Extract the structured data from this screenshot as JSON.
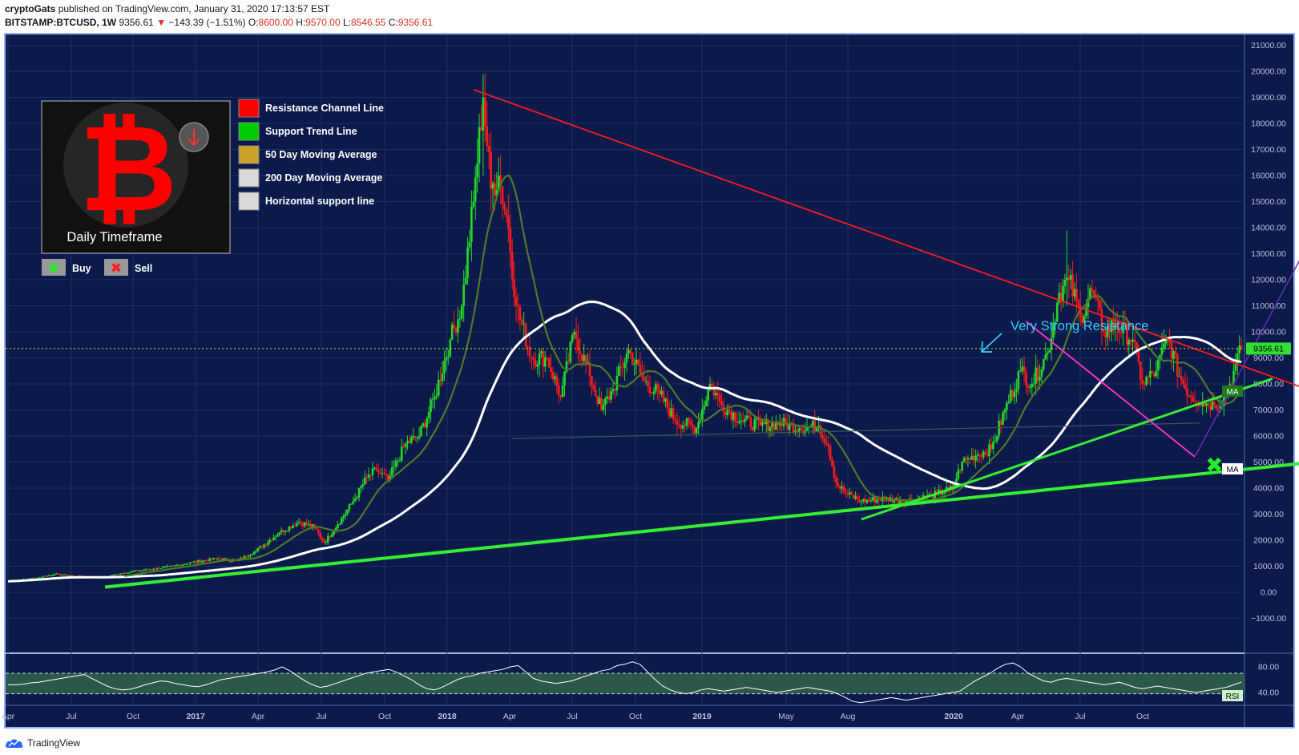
{
  "header": {
    "author": "cryptoGats",
    "published_text": " published on TradingView.com, January 31, 2020 17:13:57 EST",
    "symbol": "BITSTAMP:BTCUSD, 1W",
    "last": "9356.61",
    "change": "−143.39 (−1.51%)",
    "o_label": "O:",
    "o_value": "8600.00",
    "h_label": "H:",
    "h_value": "9570.00",
    "l_label": "L:",
    "l_value": "8546.55",
    "c_label": "C:",
    "c_value": "9356.61"
  },
  "footer": {
    "brand": "TradingView"
  },
  "overlay": {
    "logo_caption": "Daily Timeframe",
    "legend": [
      {
        "label": "Resistance Channel Line",
        "color": "#ff0000"
      },
      {
        "label": "Support Trend Line",
        "color": "#00cc00"
      },
      {
        "label": "50 Day Moving Average",
        "color": "#c9a227"
      },
      {
        "label": "200 Day Moving Average",
        "color": "#d9d9d9"
      },
      {
        "label": "Horizontal support line",
        "color": "#d9d9d9"
      }
    ],
    "buy_label": "Buy",
    "sell_label": "Sell",
    "annotation": "Very Strong Resistance"
  },
  "colors": {
    "background": "#0b1a4a",
    "up": "#26d926",
    "down": "#ff1a1a",
    "resistance": "#ff1a1a",
    "support": "#33ee33",
    "ma50": "#4c7a2a",
    "ma200": "#ffffff",
    "wedge": "#ff33cc",
    "projection": "#6a2fb0",
    "annotation": "#33ccff",
    "rsi_band": "#2f5f4a"
  },
  "chart_data": {
    "type": "candlestick",
    "symbol": "BITSTAMP:BTCUSD",
    "interval": "1W",
    "ylim": [
      -1000,
      21000
    ],
    "y_ticks": [
      "21000.00",
      "20000.00",
      "19000.00",
      "18000.00",
      "17000.00",
      "16000.00",
      "15000.00",
      "14000.00",
      "13000.00",
      "12000.00",
      "11000.00",
      "10000.00",
      "9000.00",
      "8000.00",
      "7000.00",
      "6000.00",
      "5000.00",
      "4000.00",
      "3000.00",
      "2000.00",
      "1000.00",
      "0.00",
      "−1000.00"
    ],
    "x_ticks": [
      "Apr",
      "Jul",
      "Oct",
      "2017",
      "Apr",
      "Jul",
      "Oct",
      "2018",
      "Apr",
      "Jul",
      "Oct",
      "2019",
      "May",
      "Aug",
      "2020",
      "Apr",
      "Jul",
      "Oct"
    ],
    "price_label": "9356.61",
    "ma_labels": [
      "MA",
      "MA"
    ],
    "rsi": {
      "label": "RSI",
      "ticks": [
        "80.00",
        "40.00"
      ],
      "band": [
        30,
        70
      ],
      "values": [
        52,
        52,
        53,
        55,
        56,
        58,
        60,
        62,
        64,
        66,
        68,
        62,
        56,
        50,
        46,
        44,
        45,
        48,
        52,
        55,
        58,
        57,
        54,
        52,
        50,
        49,
        52,
        56,
        60,
        62,
        64,
        66,
        68,
        70,
        72,
        75,
        80,
        74,
        66,
        58,
        52,
        48,
        50,
        54,
        58,
        62,
        66,
        70,
        72,
        74,
        76,
        72,
        66,
        60,
        52,
        46,
        44,
        48,
        54,
        60,
        64,
        66,
        70,
        72,
        74,
        76,
        80,
        82,
        72,
        62,
        58,
        56,
        54,
        56,
        58,
        62,
        66,
        70,
        74,
        76,
        82,
        84,
        88,
        84,
        72,
        60,
        50,
        44,
        40,
        38,
        40,
        44,
        46,
        44,
        42,
        44,
        46,
        48,
        46,
        44,
        42,
        40,
        42,
        44,
        46,
        48,
        46,
        44,
        42,
        38,
        32,
        26,
        24,
        26,
        28,
        30,
        32,
        30,
        28,
        30,
        32,
        34,
        36,
        38,
        40,
        42,
        50,
        58,
        64,
        70,
        78,
        84,
        86,
        80,
        70,
        64,
        58,
        56,
        60,
        62,
        60,
        58,
        56,
        54,
        52,
        54,
        56,
        52,
        48,
        46,
        48,
        50,
        48,
        46,
        44,
        42,
        40,
        42,
        44,
        46,
        48,
        52,
        56
      ]
    },
    "series": {
      "close_anchors": [
        [
          0,
          420
        ],
        [
          15,
          550
        ],
        [
          24,
          700
        ],
        [
          36,
          620
        ],
        [
          48,
          560
        ],
        [
          60,
          750
        ],
        [
          75,
          900
        ],
        [
          85,
          1000
        ],
        [
          95,
          1150
        ],
        [
          108,
          1300
        ],
        [
          118,
          1200
        ],
        [
          128,
          1600
        ],
        [
          140,
          2300
        ],
        [
          150,
          2700
        ],
        [
          158,
          2500
        ],
        [
          163,
          1900
        ],
        [
          170,
          2600
        ],
        [
          178,
          3500
        ],
        [
          185,
          4400
        ],
        [
          190,
          4700
        ],
        [
          196,
          4300
        ],
        [
          205,
          5700
        ],
        [
          212,
          6000
        ],
        [
          220,
          7500
        ],
        [
          228,
          9700
        ],
        [
          234,
          11000
        ],
        [
          240,
          15000
        ],
        [
          245,
          19000
        ],
        [
          249,
          15500
        ],
        [
          253,
          16000
        ],
        [
          258,
          14000
        ],
        [
          262,
          11000
        ],
        [
          270,
          9000
        ],
        [
          278,
          9000
        ],
        [
          285,
          7500
        ],
        [
          292,
          10000
        ],
        [
          300,
          8300
        ],
        [
          306,
          7000
        ],
        [
          312,
          7800
        ],
        [
          320,
          9300
        ],
        [
          328,
          8100
        ],
        [
          336,
          7600
        ],
        [
          344,
          6600
        ],
        [
          355,
          6300
        ],
        [
          362,
          8000
        ],
        [
          368,
          7200
        ],
        [
          378,
          6600
        ],
        [
          388,
          6400
        ],
        [
          398,
          6500
        ],
        [
          408,
          6300
        ],
        [
          418,
          6400
        ],
        [
          423,
          5600
        ],
        [
          427,
          4200
        ],
        [
          432,
          3800
        ],
        [
          440,
          3500
        ],
        [
          452,
          3600
        ],
        [
          464,
          3500
        ],
        [
          476,
          3700
        ],
        [
          487,
          4000
        ],
        [
          492,
          5000
        ],
        [
          500,
          5300
        ],
        [
          507,
          5500
        ],
        [
          514,
          7000
        ],
        [
          522,
          8500
        ],
        [
          528,
          8000
        ],
        [
          536,
          9200
        ],
        [
          542,
          11500
        ],
        [
          547,
          12000
        ],
        [
          553,
          10600
        ],
        [
          559,
          11600
        ],
        [
          565,
          10000
        ],
        [
          571,
          10300
        ],
        [
          580,
          9700
        ],
        [
          585,
          8000
        ],
        [
          592,
          8500
        ],
        [
          598,
          9800
        ],
        [
          604,
          8300
        ],
        [
          610,
          7500
        ],
        [
          616,
          7300
        ],
        [
          622,
          7200
        ],
        [
          628,
          7500
        ],
        [
          632,
          8500
        ],
        [
          636,
          9356
        ]
      ]
    },
    "annotations": {
      "resistance_line": [
        [
          240,
          19300
        ],
        [
          752,
          5600
        ]
      ],
      "support_line_long": [
        [
          50,
          200
        ],
        [
          752,
          5600
        ]
      ],
      "support_line_recent": [
        [
          440,
          2800
        ],
        [
          652,
          8200
        ]
      ],
      "wedge_line": [
        [
          525,
          10400
        ],
        [
          612,
          5200
        ]
      ],
      "horizontal_support": [
        [
          260,
          5900
        ],
        [
          615,
          6500
        ]
      ],
      "projection": [
        [
          612,
          5200
        ],
        [
          675,
          14000
        ],
        [
          686,
          13200
        ]
      ],
      "buy_marker_index": 622
    }
  }
}
